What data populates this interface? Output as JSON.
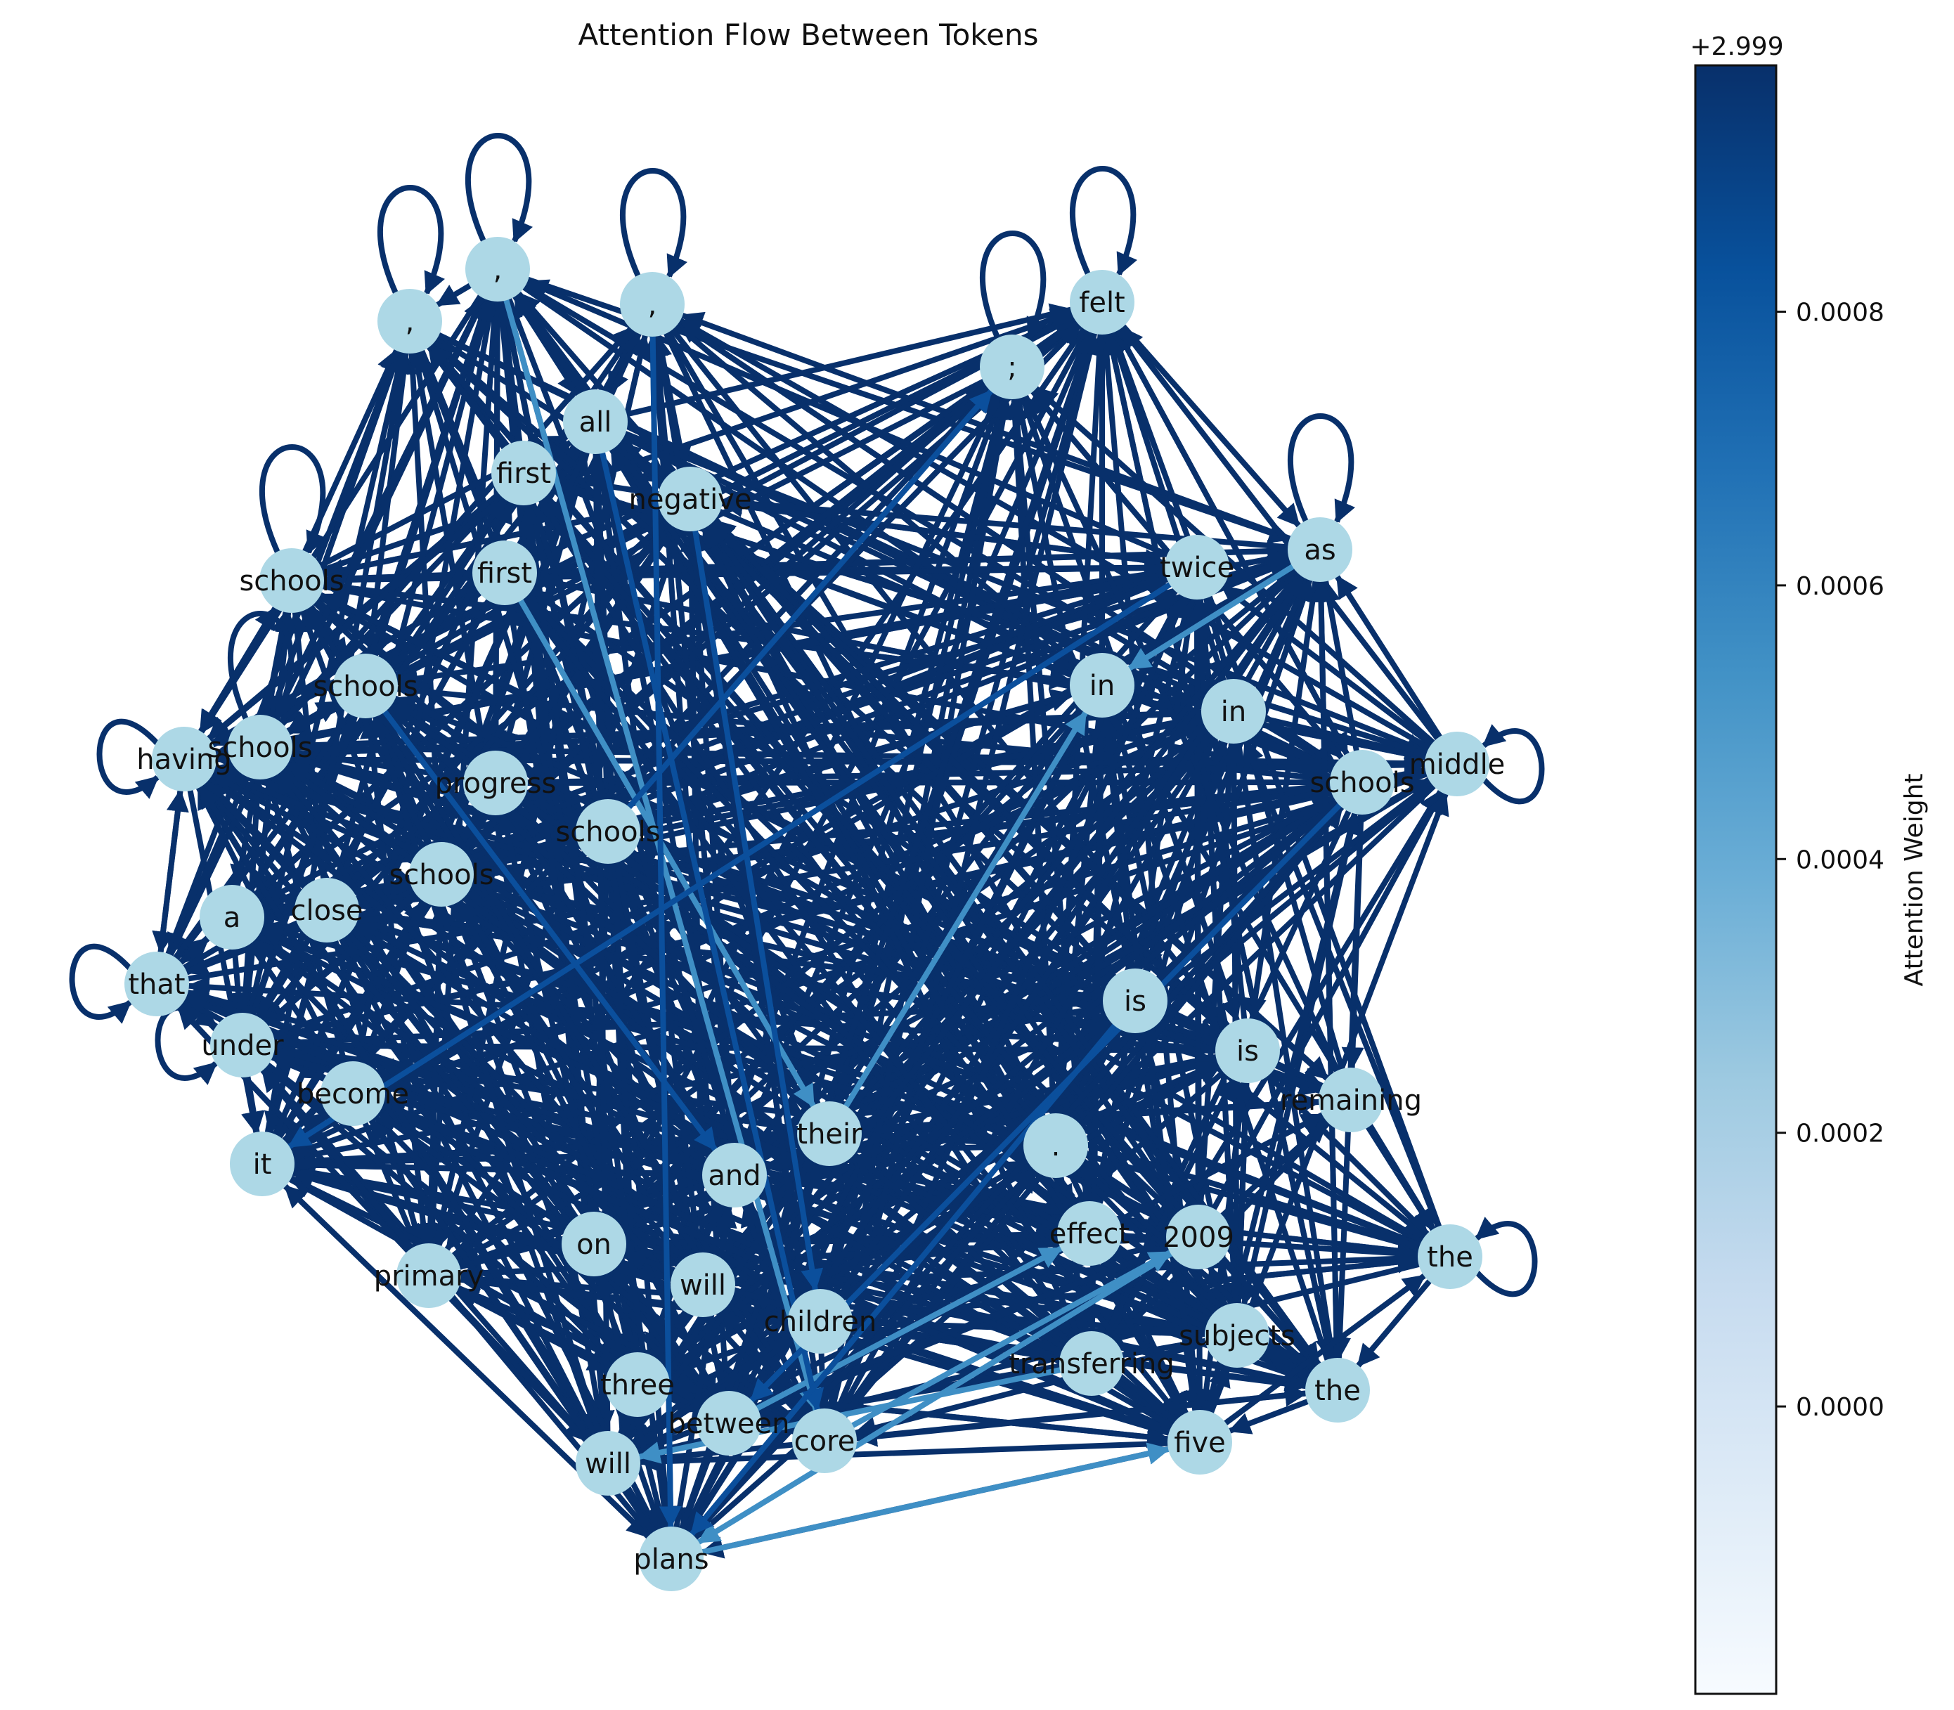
{
  "chart_data": {
    "type": "network",
    "title": "Attention Flow Between Tokens",
    "colorbar": {
      "label": "Attention Weight",
      "offset_text": "+2.999",
      "ticks": [
        "0.0000",
        "0.0002",
        "0.0004",
        "0.0006",
        "0.0008"
      ],
      "tick_values": [
        0.0,
        0.0002,
        0.0004,
        0.0006,
        0.0008
      ],
      "range": [
        -0.00021,
        0.00098
      ],
      "colormap": "Blues"
    },
    "node_color": "#add8e6",
    "edge_color_high": "#08306b",
    "edge_color_low": "#3f8fc5",
    "nodes": [
      {
        "id": "n0",
        "label": ","
      },
      {
        "id": "n1",
        "label": ","
      },
      {
        "id": "n2",
        "label": ","
      },
      {
        "id": "n3",
        "label": "felt"
      },
      {
        "id": "n4",
        "label": ";"
      },
      {
        "id": "n5",
        "label": "all"
      },
      {
        "id": "n6",
        "label": "first"
      },
      {
        "id": "n7",
        "label": "negative"
      },
      {
        "id": "n8",
        "label": "first"
      },
      {
        "id": "n9",
        "label": "schools"
      },
      {
        "id": "n10",
        "label": "twice"
      },
      {
        "id": "n11",
        "label": "as"
      },
      {
        "id": "n12",
        "label": "schools"
      },
      {
        "id": "n13",
        "label": "in"
      },
      {
        "id": "n14",
        "label": "in"
      },
      {
        "id": "n15",
        "label": "having"
      },
      {
        "id": "n16",
        "label": "schools"
      },
      {
        "id": "n17",
        "label": "schools"
      },
      {
        "id": "n18",
        "label": "middle"
      },
      {
        "id": "n19",
        "label": "progress"
      },
      {
        "id": "n20",
        "label": "schools"
      },
      {
        "id": "n21",
        "label": "schools"
      },
      {
        "id": "n22",
        "label": "a"
      },
      {
        "id": "n23",
        "label": "close"
      },
      {
        "id": "n24",
        "label": "that"
      },
      {
        "id": "n25",
        "label": "is"
      },
      {
        "id": "n26",
        "label": "under"
      },
      {
        "id": "n27",
        "label": "is"
      },
      {
        "id": "n28",
        "label": "become"
      },
      {
        "id": "n29",
        "label": "remaining"
      },
      {
        "id": "n30",
        "label": "it"
      },
      {
        "id": "n31",
        "label": "their"
      },
      {
        "id": "n32",
        "label": "."
      },
      {
        "id": "n33",
        "label": "and"
      },
      {
        "id": "n34",
        "label": "on"
      },
      {
        "id": "n35",
        "label": "effect"
      },
      {
        "id": "n36",
        "label": "2009"
      },
      {
        "id": "n37",
        "label": "the"
      },
      {
        "id": "n38",
        "label": "primary"
      },
      {
        "id": "n39",
        "label": "will"
      },
      {
        "id": "n40",
        "label": "children"
      },
      {
        "id": "n41",
        "label": "subjects"
      },
      {
        "id": "n42",
        "label": "transferring"
      },
      {
        "id": "n43",
        "label": "three"
      },
      {
        "id": "n44",
        "label": "the"
      },
      {
        "id": "n45",
        "label": "between"
      },
      {
        "id": "n46",
        "label": "core"
      },
      {
        "id": "n47",
        "label": "five"
      },
      {
        "id": "n48",
        "label": "will"
      },
      {
        "id": "n49",
        "label": "plans"
      }
    ],
    "self_loops": [
      "n0",
      "n1",
      "n2",
      "n3",
      "n4",
      "n9",
      "n11",
      "n15",
      "n16",
      "n18",
      "n24",
      "n26",
      "n37"
    ],
    "edge_weight_note": "all edge weights lie near 2.999 + [0.0000, 0.0009]; most edges rendered dark (~0.0009), a few lighter"
  }
}
